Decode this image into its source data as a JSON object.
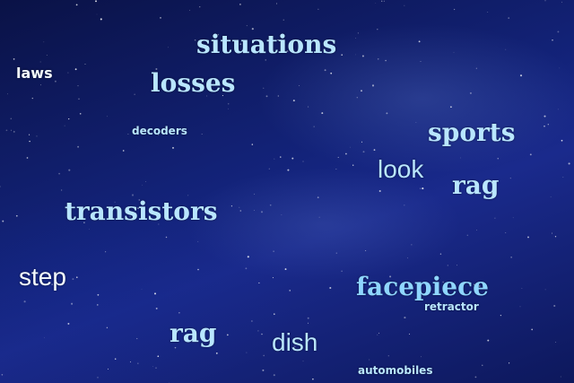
{
  "words": {
    "situations": "situations",
    "laws": "laws",
    "losses": "losses",
    "decoders": "decoders",
    "sports": "sports",
    "look": "look",
    "rag_right": "rag",
    "transistors": "transistors",
    "step": "step",
    "facepiece": "facepiece",
    "retractor": "retractor",
    "rag_bottom": "rag",
    "dish": "dish",
    "automobiles": "automobiles"
  },
  "colors": {
    "background": "#0b1550",
    "text_light": "#b9e6ff",
    "text_white": "#f4fbff",
    "text_blue": "#8fd6ff"
  }
}
